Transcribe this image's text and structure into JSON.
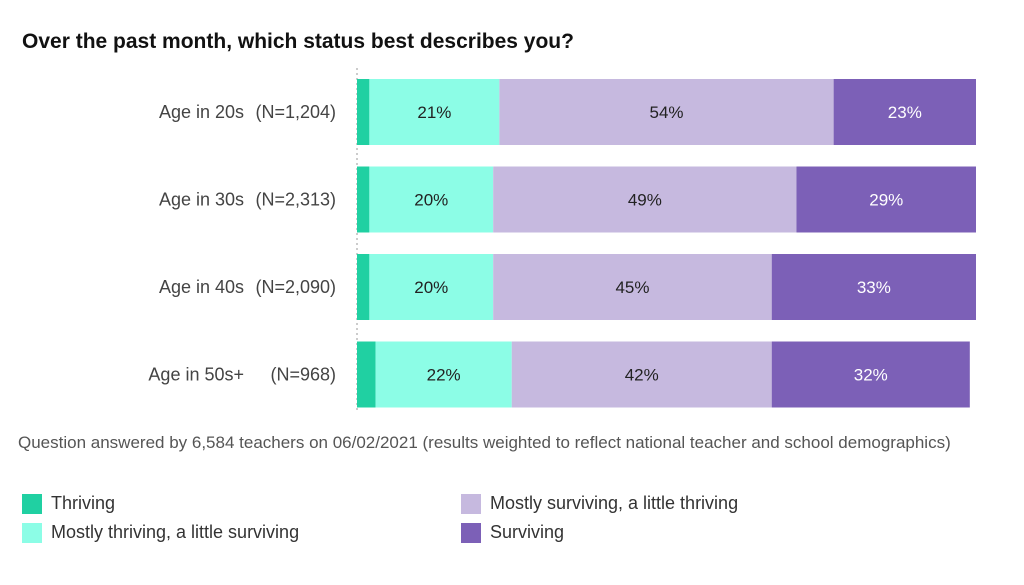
{
  "chart_data": {
    "type": "bar",
    "orientation": "horizontal",
    "stacked": true,
    "title": "Over the past month, which status best describes you?",
    "categories": [
      "Age in 20s",
      "Age in 30s",
      "Age in 40s",
      "Age in 50s+"
    ],
    "category_counts": [
      "(N=1,204)",
      "(N=2,313)",
      "(N=2,090)",
      "(N=968)"
    ],
    "xlim": [
      0,
      100
    ],
    "series": [
      {
        "name": "Thriving",
        "color": "#20d0a2",
        "values": [
          2,
          2,
          2,
          3
        ],
        "labels": [
          "",
          "",
          "",
          ""
        ]
      },
      {
        "name": "Mostly thriving, a little surviving",
        "color": "#8cfde6",
        "values": [
          21,
          20,
          20,
          22
        ],
        "labels": [
          "21%",
          "20%",
          "20%",
          "22%"
        ]
      },
      {
        "name": "Mostly surviving, a little thriving",
        "color": "#c6b9df",
        "values": [
          54,
          49,
          45,
          42
        ],
        "labels": [
          "54%",
          "49%",
          "45%",
          "42%"
        ]
      },
      {
        "name": "Surviving",
        "color": "#7c60b7",
        "values": [
          23,
          29,
          33,
          32
        ],
        "labels": [
          "23%",
          "29%",
          "33%",
          "32%"
        ]
      }
    ],
    "legend_position": "bottom",
    "label_colors": [
      "#222222",
      "#222222",
      "#222222",
      "#ffffff"
    ]
  },
  "caption": "Question answered by 6,584 teachers on 06/02/2021 (results weighted to reflect national teacher and school demographics)"
}
